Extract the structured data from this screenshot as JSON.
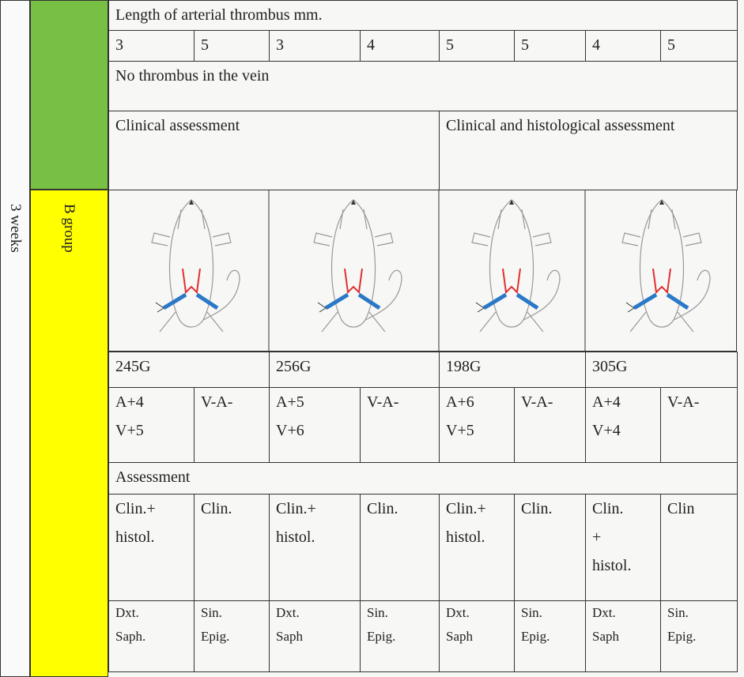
{
  "side_label": "3 weeks",
  "group_label": "B group",
  "table": {
    "rows": [
      [
        "Length of arterial thrombus mm."
      ],
      [
        "3",
        "5",
        "3",
        "4",
        "5",
        "5",
        "4",
        "5"
      ],
      [
        "No thrombus in the vein"
      ],
      [
        "Clinical assessment",
        "Clinical and histological assessment"
      ],
      [
        "245G",
        "256G",
        "198G",
        "305G"
      ],
      [
        "A+4\nV+5",
        "V-A-",
        "A+5\nV+6",
        "V-A-",
        "A+6\nV+5",
        "V-A-",
        "A+4\nV+4",
        "V-A-"
      ],
      [
        "Assessment"
      ],
      [
        "Clin.+\nhistol.",
        "Clin.",
        "Clin.+\nhistol.",
        "Clin.",
        "Clin.+\nhistol.",
        "Clin.",
        "Clin.\n+\nhistol.",
        "Clin"
      ],
      [
        "Dxt.\nSaph.",
        "Sin.\nEpig.",
        "Dxt.\nSaph",
        "Sin.\nEpig.",
        "Dxt.\nSaph",
        "Sin.\nEpig.",
        "Dxt.\nSaph",
        "Sin.\nEpig."
      ]
    ]
  }
}
